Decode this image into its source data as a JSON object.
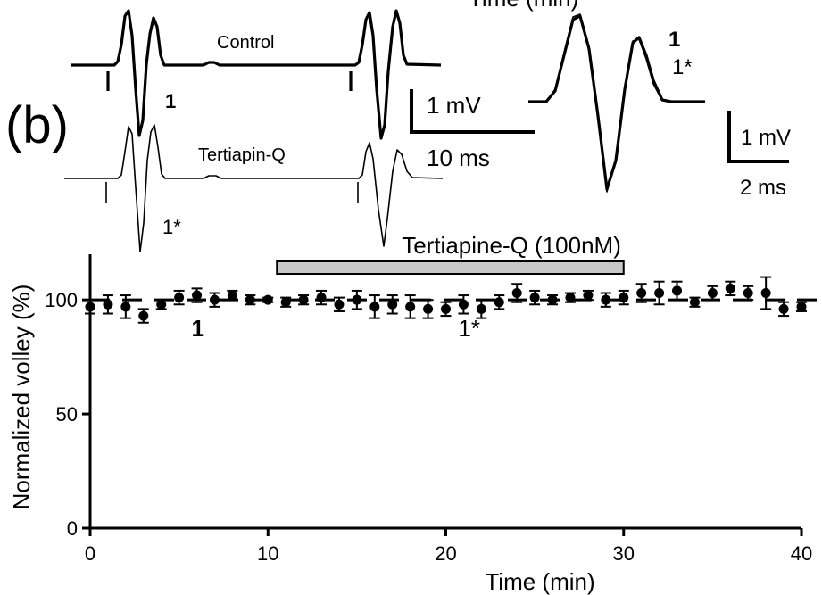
{
  "panel_label": "(b)",
  "top_clip_text": "Time (min)",
  "traces": {
    "control_label": "Control",
    "drug_label": "Tertiapin-Q",
    "control_marker": "1",
    "drug_marker": "1*",
    "scalebar_main": {
      "voltage": "1 mV",
      "time": "10 ms"
    },
    "overlay_markers": {
      "control": "1",
      "drug": "1*"
    },
    "scalebar_overlay": {
      "voltage": "1 mV",
      "time": "2 ms"
    }
  },
  "chart_data": {
    "type": "scatter",
    "title": "",
    "xlabel": "Time (min)",
    "ylabel": "Normalized volley (%)",
    "xlim": [
      0,
      40
    ],
    "ylim": [
      0,
      120
    ],
    "xticks": [
      0,
      10,
      20,
      30,
      40
    ],
    "yticks": [
      0,
      50,
      100
    ],
    "baseline": 100,
    "drug_bar": {
      "label": "Tertiapine-Q (100nM)",
      "start": 10.5,
      "end": 30
    },
    "annotations": [
      {
        "text": "1",
        "x": 6,
        "y": 88,
        "bold": true
      },
      {
        "text": "1*",
        "x": 21,
        "y": 88,
        "bold": false
      }
    ],
    "series": [
      {
        "x": [
          0,
          1,
          2,
          3,
          4,
          5,
          6,
          7,
          8,
          9,
          10,
          11,
          12,
          13,
          14,
          15,
          16,
          17,
          18,
          19,
          20,
          21,
          22,
          23,
          24,
          25,
          26,
          27,
          28,
          29,
          30,
          31,
          32,
          33,
          34,
          35,
          36,
          37,
          38,
          39,
          40
        ],
        "y": [
          97,
          98,
          97,
          93,
          98,
          101,
          102,
          100,
          102,
          100,
          100,
          99,
          100,
          101,
          98,
          100,
          97,
          98,
          97,
          96,
          96,
          98,
          96,
          99,
          103,
          101,
          100,
          101,
          102,
          100,
          101,
          103,
          103,
          104,
          99,
          103,
          105,
          103,
          103,
          96,
          97
        ],
        "err": [
          3,
          4,
          5,
          3,
          2,
          3,
          3,
          3,
          2,
          2,
          1,
          2,
          2,
          3,
          3,
          4,
          5,
          4,
          5,
          4,
          3,
          4,
          4,
          3,
          4,
          3,
          2,
          2,
          2,
          3,
          3,
          4,
          5,
          4,
          2,
          3,
          3,
          3,
          7,
          3,
          2
        ]
      }
    ]
  }
}
